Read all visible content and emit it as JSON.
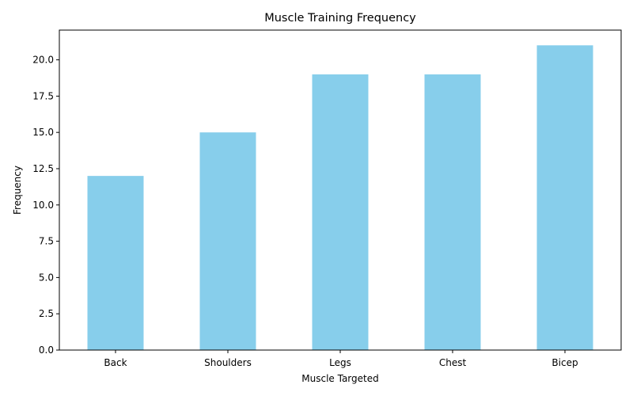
{
  "chart_data": {
    "type": "bar",
    "title": "Muscle Training Frequency",
    "xlabel": "Muscle Targeted",
    "ylabel": "Frequency",
    "categories": [
      "Back",
      "Shoulders",
      "Legs",
      "Chest",
      "Bicep"
    ],
    "values": [
      12,
      15,
      19,
      19,
      21
    ],
    "ylim": [
      0,
      22.05
    ],
    "yticks": [
      0.0,
      2.5,
      5.0,
      7.5,
      10.0,
      12.5,
      15.0,
      17.5,
      20.0
    ],
    "ytick_labels": [
      "0.0",
      "2.5",
      "5.0",
      "7.5",
      "10.0",
      "12.5",
      "15.0",
      "17.5",
      "20.0"
    ],
    "grid": false,
    "legend": "none",
    "bar_color": "#87CEEB"
  }
}
